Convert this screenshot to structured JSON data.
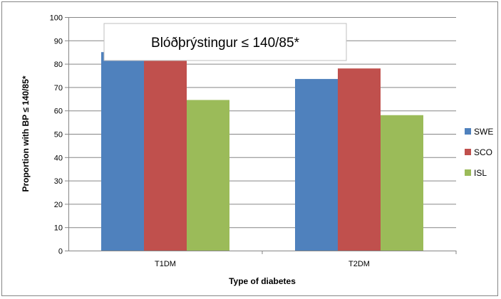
{
  "chart_data": {
    "type": "bar",
    "title": "Blóðþrýstingur ≤ 140/85*",
    "xlabel": "Type of diabetes",
    "ylabel": "Proportion with BP ≤ 140/85*",
    "categories": [
      "T1DM",
      "T2DM"
    ],
    "ylim": [
      0,
      100
    ],
    "yticks": [
      0,
      10,
      20,
      30,
      40,
      50,
      60,
      70,
      80,
      90,
      100
    ],
    "grid": true,
    "legend_position": "right",
    "series": [
      {
        "name": "SWE",
        "color": "#4f81bd",
        "values": [
          85,
          73.5
        ]
      },
      {
        "name": "SCO",
        "color": "#c0504d",
        "values": [
          82,
          78
        ]
      },
      {
        "name": "ISL",
        "color": "#9bbb59",
        "values": [
          64.5,
          58
        ]
      }
    ]
  }
}
